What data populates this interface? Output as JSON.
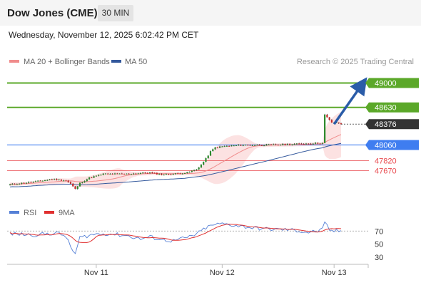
{
  "header": {
    "title": "Dow Jones (CME)",
    "timeframe": "30 MIN"
  },
  "date_line": "Wednesday, November 12, 2025 6:02:42 PM CET",
  "legend": {
    "ma_bb": "MA 20 + Bollinger Bands",
    "ma50": "MA 50",
    "credit": "Research © 2025 Trading Central"
  },
  "indicator_legend": {
    "rsi": "RSI",
    "ma9": "9MA"
  },
  "colors": {
    "green": "#5ba829",
    "blue": "#3f7df0",
    "red": "#e8474c",
    "dark": "#333333",
    "arrow": "#2a5ca8",
    "ma20": "#f08c8c",
    "ma50": "#33589c",
    "rsi": "#5580d6",
    "rsi_ma": "#e03030"
  },
  "chart_data": [
    {
      "type": "candlestick",
      "x_tick_labels": [
        "Nov 11",
        "Nov 12",
        "Nov 13"
      ],
      "x_ticks_idx": [
        37,
        91,
        139
      ],
      "n_bars": 143,
      "ylim": [
        47200,
        49200
      ],
      "levels": [
        {
          "label": "49000",
          "value": 49000,
          "kind": "resistance"
        },
        {
          "label": "48630",
          "value": 48630,
          "kind": "resistance"
        },
        {
          "label": "48376",
          "value": 48376,
          "kind": "current"
        },
        {
          "label": "48060",
          "value": 48060,
          "kind": "pivot"
        },
        {
          "label": "47820",
          "value": 47820,
          "kind": "support"
        },
        {
          "label": "47670",
          "value": 47670,
          "kind": "support"
        }
      ],
      "key_closes": [
        [
          0,
          47460
        ],
        [
          10,
          47500
        ],
        [
          18,
          47540
        ],
        [
          24,
          47520
        ],
        [
          26,
          47470
        ],
        [
          28,
          47390
        ],
        [
          30,
          47480
        ],
        [
          34,
          47560
        ],
        [
          40,
          47620
        ],
        [
          50,
          47620
        ],
        [
          60,
          47640
        ],
        [
          65,
          47610
        ],
        [
          70,
          47620
        ],
        [
          76,
          47640
        ],
        [
          80,
          47690
        ],
        [
          82,
          47760
        ],
        [
          84,
          47850
        ],
        [
          86,
          47960
        ],
        [
          88,
          48020
        ],
        [
          92,
          48040
        ],
        [
          100,
          48060
        ],
        [
          110,
          48060
        ],
        [
          120,
          48070
        ],
        [
          130,
          48085
        ],
        [
          134,
          48090
        ],
        [
          135,
          48520
        ],
        [
          136,
          48480
        ],
        [
          137,
          48440
        ],
        [
          138,
          48400
        ]
      ],
      "projection": {
        "from": [
          139,
          48376
        ],
        "to": [
          151,
          48980
        ]
      }
    },
    {
      "type": "line",
      "name": "RSI",
      "y_tick_labels": [
        "70",
        "50",
        "30"
      ],
      "y_tick_values": [
        70,
        50,
        30
      ],
      "ylim": [
        20,
        90
      ],
      "key_values": [
        [
          0,
          66
        ],
        [
          10,
          64
        ],
        [
          20,
          67
        ],
        [
          24,
          62
        ],
        [
          26,
          45
        ],
        [
          28,
          35
        ],
        [
          30,
          60
        ],
        [
          36,
          65
        ],
        [
          42,
          66
        ],
        [
          50,
          63
        ],
        [
          56,
          58
        ],
        [
          60,
          61
        ],
        [
          66,
          56
        ],
        [
          70,
          55
        ],
        [
          76,
          60
        ],
        [
          80,
          65
        ],
        [
          84,
          75
        ],
        [
          88,
          80
        ],
        [
          92,
          81
        ],
        [
          98,
          78
        ],
        [
          104,
          75
        ],
        [
          110,
          73
        ],
        [
          120,
          72
        ],
        [
          128,
          68
        ],
        [
          132,
          70
        ],
        [
          134,
          72
        ],
        [
          135,
          82
        ],
        [
          136,
          78
        ],
        [
          137,
          72
        ],
        [
          138,
          70
        ]
      ]
    }
  ]
}
